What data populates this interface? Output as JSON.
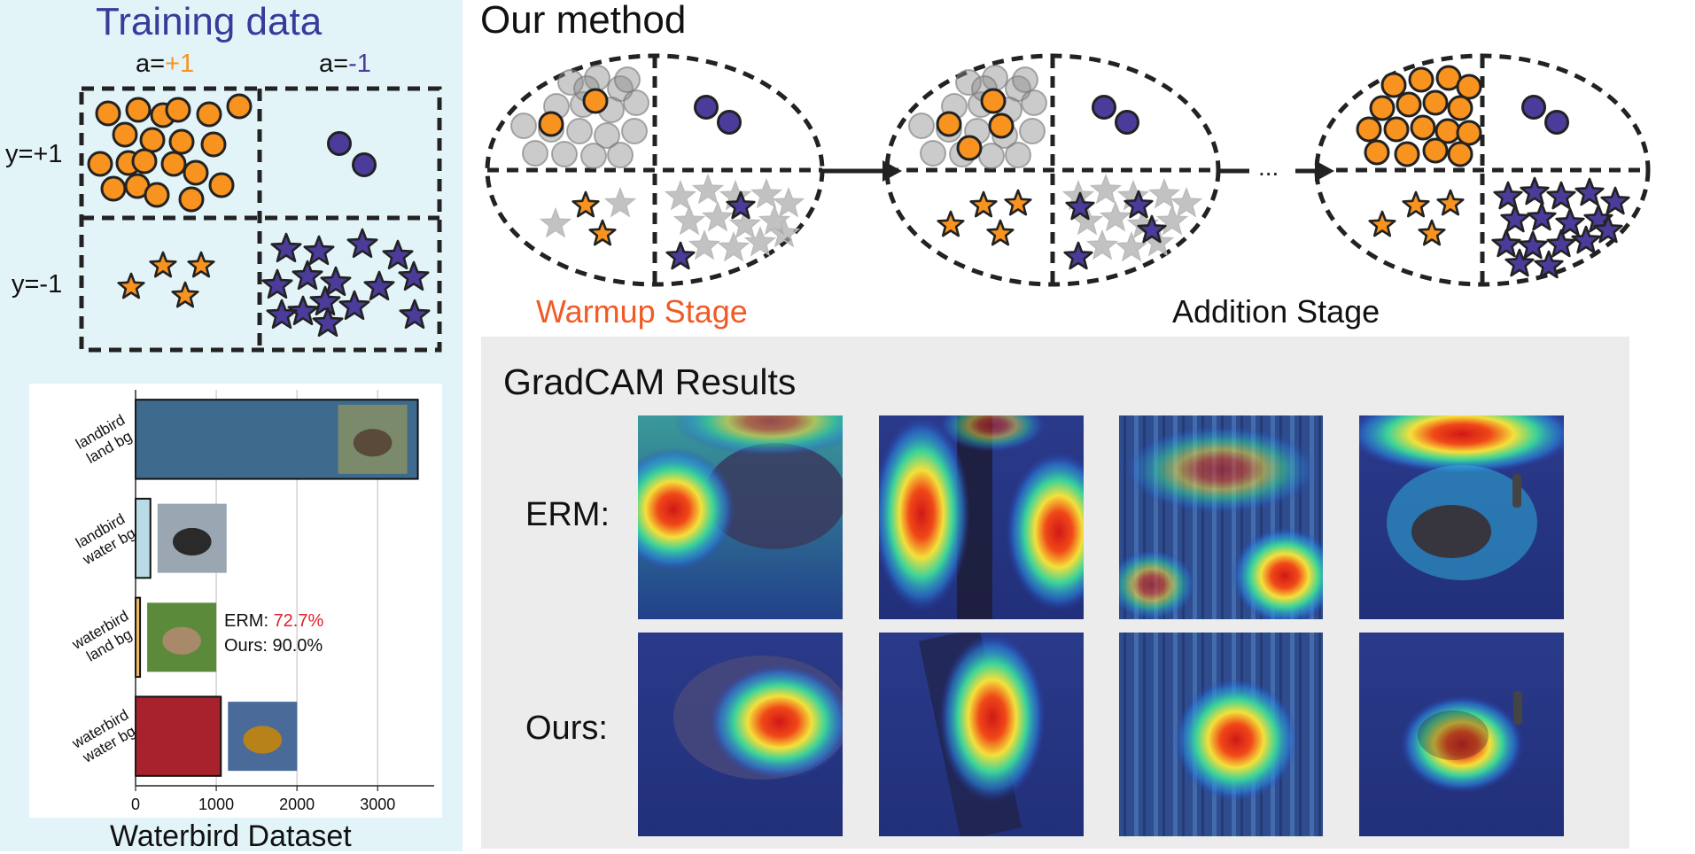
{
  "training": {
    "title": "Training data",
    "col_a_pos_prefix": "a=",
    "col_a_pos_value": "+1",
    "col_a_neg_prefix": "a=",
    "col_a_neg_value": "-1",
    "row_y_pos": "y=+1",
    "row_y_neg": "y=-1"
  },
  "method": {
    "title": "Our method",
    "warmup_label": "Warmup Stage",
    "addition_label": "Addition Stage",
    "ellipsis": "..."
  },
  "gradcam": {
    "title": "GradCAM Results",
    "row_erm": "ERM:",
    "row_ours": "Ours:"
  },
  "chart_data": {
    "type": "bar",
    "orientation": "horizontal",
    "title": "Waterbird Dataset",
    "categories": [
      [
        "landbird",
        "land bg"
      ],
      [
        "landbird",
        "water bg"
      ],
      [
        "waterbird",
        "land bg"
      ],
      [
        "waterbird",
        "water bg"
      ]
    ],
    "values": [
      3498,
      184,
      56,
      1057
    ],
    "xlim": [
      0,
      3700
    ],
    "xticks": [
      "0",
      "1000",
      "2000",
      "3000"
    ],
    "xtick_values": [
      0,
      1000,
      2000,
      3000
    ],
    "grid": true,
    "bar_colors": [
      "#3e6a8e",
      "#b9dbe5",
      "#f0b765",
      "#a8222e"
    ],
    "annotation": {
      "erm_label": "ERM: ",
      "erm_value": "72.7%",
      "ours_label": "Ours: 90.0%"
    }
  },
  "colors": {
    "title_blue": "#3a3a9a",
    "accent_orange": "#f7931e",
    "accent_purple": "#4b3c9c",
    "warmup_red": "#f15a24",
    "erm_red": "#e0202a"
  }
}
